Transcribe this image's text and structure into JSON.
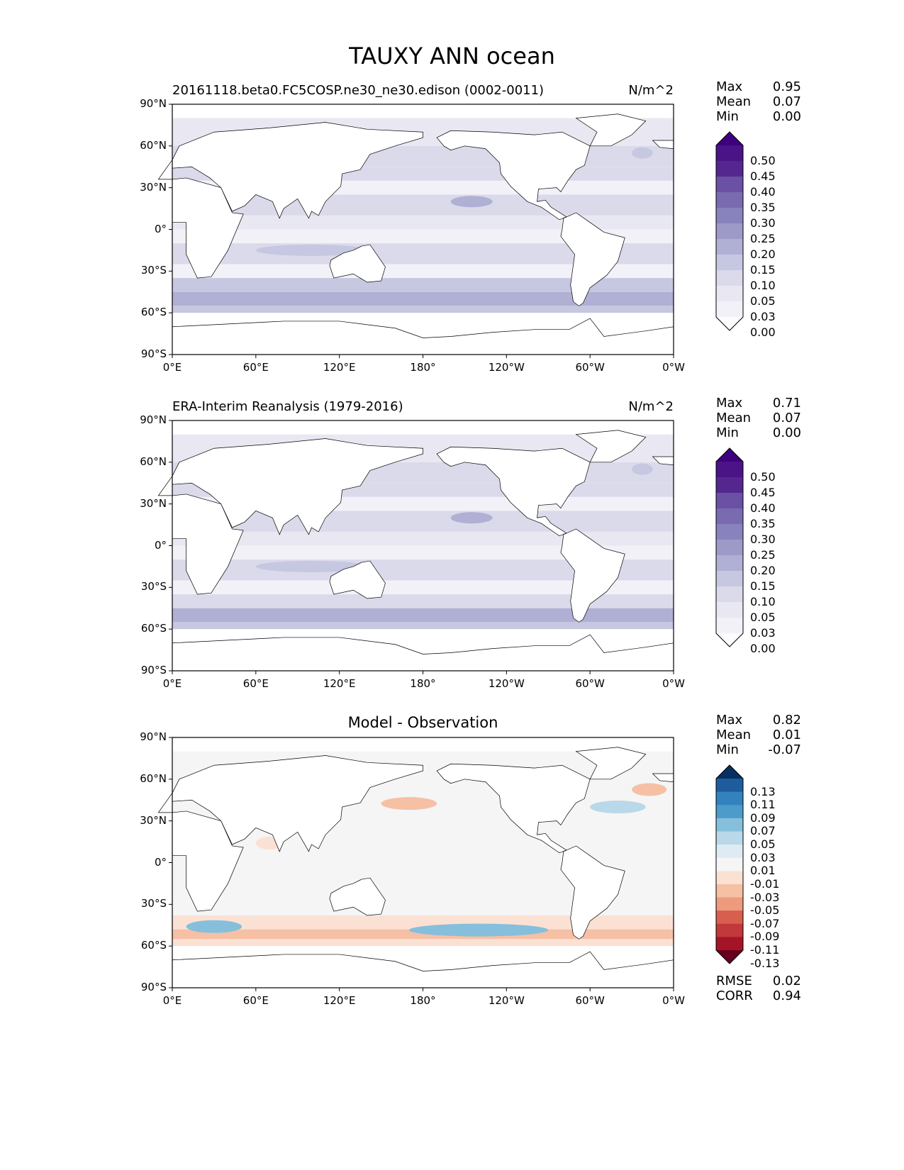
{
  "title": "TAUXY ANN ocean",
  "panels": [
    {
      "subtitle": "20161118.beta0.FC5COSP.ne30_ne30.edison (0002-0011)",
      "units": "N/m^2",
      "stats": {
        "max_label": "Max",
        "max": "0.95",
        "mean_label": "Mean",
        "mean": "0.07",
        "min_label": "Min",
        "min": "0.00"
      },
      "colorbar": "seq"
    },
    {
      "subtitle": "ERA-Interim Reanalysis (1979-2016)",
      "units": "N/m^2",
      "stats": {
        "max_label": "Max",
        "max": "0.71",
        "mean_label": "Mean",
        "mean": "0.07",
        "min_label": "Min",
        "min": "0.00"
      },
      "colorbar": "seq"
    },
    {
      "subtitle": "Model - Observation",
      "units": "",
      "stats": {
        "max_label": "Max",
        "max": "0.82",
        "mean_label": "Mean",
        "mean": "0.01",
        "min_label": "Min",
        "min": "-0.07"
      },
      "colorbar": "div",
      "metrics": {
        "rmse_label": "RMSE",
        "rmse": "0.02",
        "corr_label": "CORR",
        "corr": "0.94"
      }
    }
  ],
  "lat_ticks": [
    "90°N",
    "60°N",
    "30°N",
    "0°",
    "30°S",
    "60°S",
    "90°S"
  ],
  "lon_ticks": [
    "0°E",
    "60°E",
    "120°E",
    "180°",
    "120°W",
    "60°W",
    "0°W"
  ],
  "seq_levels": [
    "0.50",
    "0.45",
    "0.40",
    "0.35",
    "0.30",
    "0.25",
    "0.20",
    "0.15",
    "0.10",
    "0.05",
    "0.03",
    "0.00"
  ],
  "seq_colors": [
    "#3f007d",
    "#4a1486",
    "#54278f",
    "#6a51a3",
    "#7a6bb0",
    "#8983bd",
    "#9e9ac8",
    "#b0afd4",
    "#c6c7e1",
    "#dadaeb",
    "#e9e8f2",
    "#f2f1f7",
    "#fcfbfd"
  ],
  "div_levels": [
    "0.13",
    "0.11",
    "0.09",
    "0.07",
    "0.05",
    "0.03",
    "0.01",
    "-0.01",
    "-0.03",
    "-0.05",
    "-0.07",
    "-0.09",
    "-0.11",
    "-0.13"
  ],
  "div_colors": [
    "#053061",
    "#1f5c9e",
    "#3282bd",
    "#4d9bc9",
    "#86bfdb",
    "#b9d8e9",
    "#deebf2",
    "#f5f5f5",
    "#fbe1d4",
    "#f6c0a5",
    "#ee9a7d",
    "#d6604d",
    "#c1393b",
    "#a51426",
    "#67001f"
  ]
}
